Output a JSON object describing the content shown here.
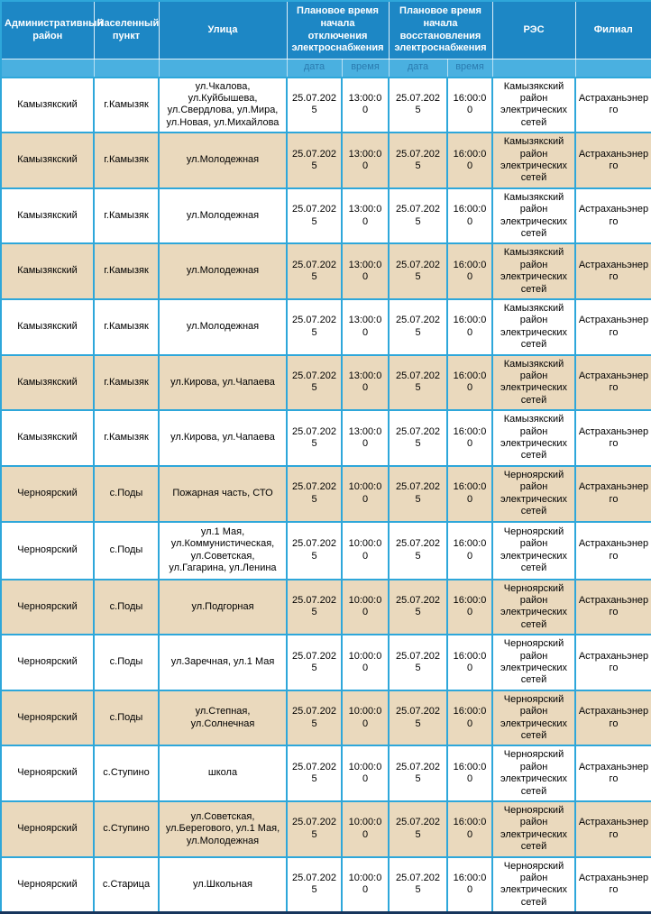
{
  "table": {
    "header": {
      "district": "Административный район",
      "settlement": "Населенный пункт",
      "street": "Улица",
      "outage": "Плановое время начала отключения электроснабжения",
      "restore": "Плановое время начала восстановления электроснабжения",
      "res": "РЭС",
      "branch": "Филиал",
      "date_label": "дата",
      "time_label": "время"
    },
    "column_keys": [
      "district",
      "settlement",
      "street",
      "outage-date",
      "outage-time",
      "restore-date",
      "restore-time",
      "res",
      "branch"
    ],
    "rows": [
      [
        "Камызякский",
        "г.Камызяк",
        "ул.Чкалова, ул.Куйбышева, ул.Свердлова, ул.Мира, ул.Новая, ул.Михайлова",
        "25.07.2025",
        "13:00:00",
        "25.07.2025",
        "16:00:00",
        "Камызякский район электрических сетей",
        "Астраханьэнерго"
      ],
      [
        "Камызякский",
        "г.Камызяк",
        "ул.Молодежная",
        "25.07.2025",
        "13:00:00",
        "25.07.2025",
        "16:00:00",
        "Камызякский район электрических сетей",
        "Астраханьэнерго"
      ],
      [
        "Камызякский",
        "г.Камызяк",
        "ул.Молодежная",
        "25.07.2025",
        "13:00:00",
        "25.07.2025",
        "16:00:00",
        "Камызякский район электрических сетей",
        "Астраханьэнерго"
      ],
      [
        "Камызякский",
        "г.Камызяк",
        "ул.Молодежная",
        "25.07.2025",
        "13:00:00",
        "25.07.2025",
        "16:00:00",
        "Камызякский район электрических сетей",
        "Астраханьэнерго"
      ],
      [
        "Камызякский",
        "г.Камызяк",
        "ул.Молодежная",
        "25.07.2025",
        "13:00:00",
        "25.07.2025",
        "16:00:00",
        "Камызякский район электрических сетей",
        "Астраханьэнерго"
      ],
      [
        "Камызякский",
        "г.Камызяк",
        "ул.Кирова, ул.Чапаева",
        "25.07.2025",
        "13:00:00",
        "25.07.2025",
        "16:00:00",
        "Камызякский район электрических сетей",
        "Астраханьэнерго"
      ],
      [
        "Камызякский",
        "г.Камызяк",
        "ул.Кирова, ул.Чапаева",
        "25.07.2025",
        "13:00:00",
        "25.07.2025",
        "16:00:00",
        "Камызякский район электрических сетей",
        "Астраханьэнерго"
      ],
      [
        "Черноярский",
        "с.Поды",
        "Пожарная часть, СТО",
        "25.07.2025",
        "10:00:00",
        "25.07.2025",
        "16:00:00",
        "Черноярский район электрических сетей",
        "Астраханьэнерго"
      ],
      [
        "Черноярский",
        "с.Поды",
        "ул.1 Мая, ул.Коммунистическая, ул.Советская, ул.Гагарина, ул.Ленина",
        "25.07.2025",
        "10:00:00",
        "25.07.2025",
        "16:00:00",
        "Черноярский район электрических сетей",
        "Астраханьэнерго"
      ],
      [
        "Черноярский",
        "с.Поды",
        "ул.Подгорная",
        "25.07.2025",
        "10:00:00",
        "25.07.2025",
        "16:00:00",
        "Черноярский район электрических сетей",
        "Астраханьэнерго"
      ],
      [
        "Черноярский",
        "с.Поды",
        "ул.Заречная, ул.1 Мая",
        "25.07.2025",
        "10:00:00",
        "25.07.2025",
        "16:00:00",
        "Черноярский район электрических сетей",
        "Астраханьэнерго"
      ],
      [
        "Черноярский",
        "с.Поды",
        "ул.Степная, ул.Солнечная",
        "25.07.2025",
        "10:00:00",
        "25.07.2025",
        "16:00:00",
        "Черноярский район электрических сетей",
        "Астраханьэнерго"
      ],
      [
        "Черноярский",
        "с.Ступино",
        "школа",
        "25.07.2025",
        "10:00:00",
        "25.07.2025",
        "16:00:00",
        "Черноярский район электрических сетей",
        "Астраханьэнерго"
      ],
      [
        "Черноярский",
        "с.Ступино",
        "ул.Советская, ул.Берегового, ул.1 Мая, ул.Молодежная",
        "25.07.2025",
        "10:00:00",
        "25.07.2025",
        "16:00:00",
        "Черноярский район электрических сетей",
        "Астраханьэнерго"
      ],
      [
        "Черноярский",
        "с.Старица",
        "ул.Школьная",
        "25.07.2025",
        "10:00:00",
        "25.07.2025",
        "16:00:00",
        "Черноярский район электрических сетей",
        "Астраханьэнерго"
      ]
    ]
  },
  "colors": {
    "header_bg": "#1d87c5",
    "subheader_bg": "#4ab0e0",
    "subheader_text": "#2b7cb0",
    "grid": "#2ea7da",
    "row_alt": "#ead9bd",
    "row_white": "#ffffff",
    "bottom_border": "#17365d",
    "text": "#000000",
    "header_text": "#ffffff"
  }
}
